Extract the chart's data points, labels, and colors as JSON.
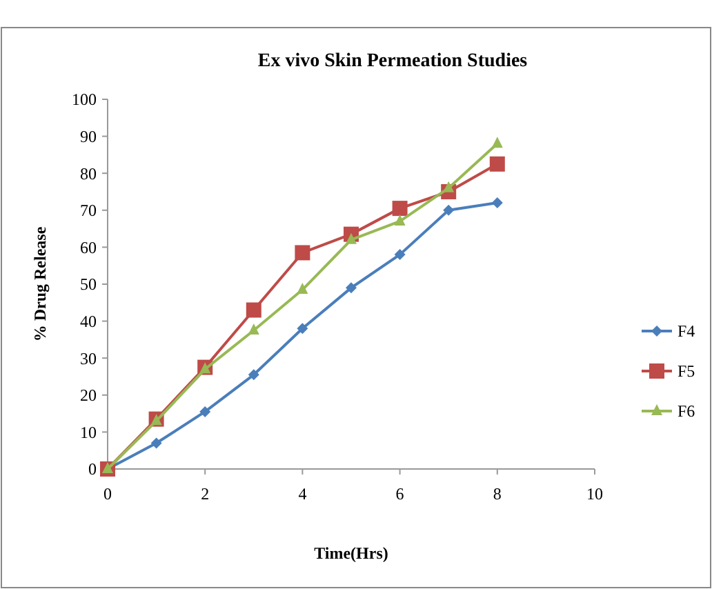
{
  "chart_data": {
    "type": "line",
    "title": "Ex vivo Skin Permeation Studies",
    "xlabel": "Time(Hrs)",
    "ylabel": "% Drug Release",
    "x": [
      0,
      1,
      2,
      3,
      4,
      5,
      6,
      7,
      8
    ],
    "xlim": [
      0,
      10
    ],
    "xticks": [
      0,
      2,
      4,
      6,
      8,
      10
    ],
    "ylim": [
      0,
      100
    ],
    "yticks": [
      0,
      10,
      20,
      30,
      40,
      50,
      60,
      70,
      80,
      90,
      100
    ],
    "grid": false,
    "legend": "right",
    "line_style": "solid",
    "series": [
      {
        "name": "F4",
        "color": "#4a7ebb",
        "marker": "diamond",
        "values": [
          0,
          7,
          15.5,
          25.5,
          38,
          49,
          58,
          70,
          72
        ]
      },
      {
        "name": "F5",
        "color": "#be4b48",
        "marker": "square",
        "values": [
          0,
          13.5,
          27.5,
          43,
          58.5,
          63.5,
          70.5,
          75,
          82.5
        ]
      },
      {
        "name": "F6",
        "color": "#98b954",
        "marker": "triangle",
        "values": [
          0,
          13,
          27,
          37.5,
          48.5,
          62,
          67,
          76,
          88
        ]
      }
    ]
  }
}
